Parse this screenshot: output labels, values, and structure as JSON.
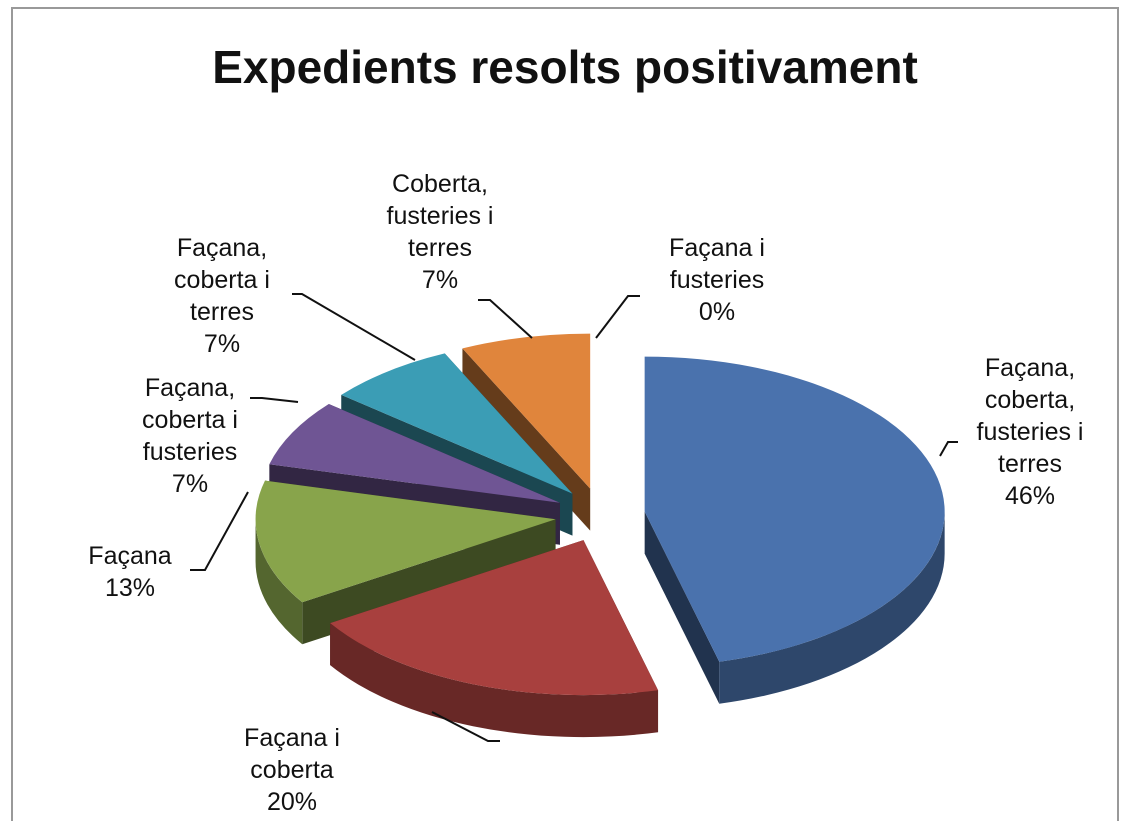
{
  "chart_data": {
    "type": "pie",
    "title": "Expedients resolts positivament",
    "categories": [
      "Façana, coberta, fusteries i terres",
      "Façana i coberta",
      "Façana",
      "Façana, coberta i fusteries",
      "Façana, coberta i terres",
      "Coberta, fusteries i terres",
      "Façana i fusteries"
    ],
    "values": [
      46,
      20,
      13,
      7,
      7,
      7,
      0
    ],
    "value_labels": [
      "46%",
      "20%",
      "13%",
      "7%",
      "7%",
      "7%",
      "0%"
    ],
    "colors": [
      "#4a72ad",
      "#a8403e",
      "#88a44b",
      "#6f5594",
      "#3b9db5",
      "#e0853c",
      "#8ea6d2"
    ]
  }
}
